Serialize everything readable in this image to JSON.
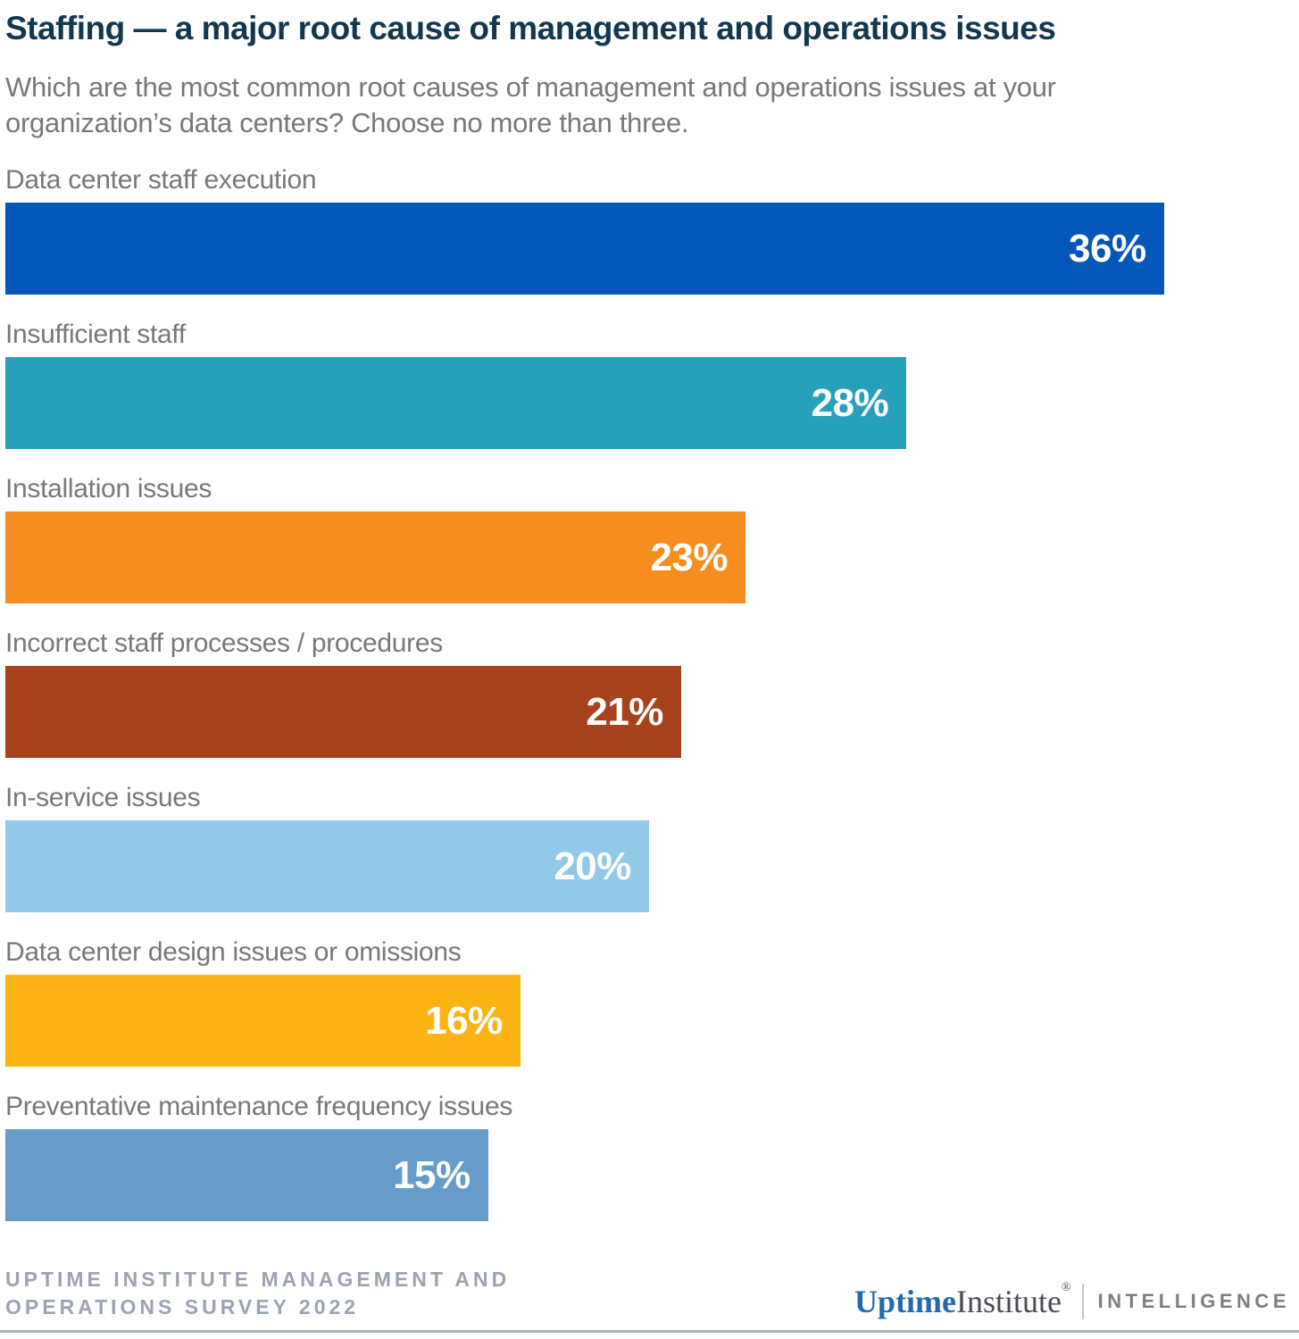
{
  "chart_data": {
    "type": "bar",
    "orientation": "horizontal",
    "title": "Staffing — a major root cause of management and operations issues",
    "subtitle": "Which are the most common root causes of management and operations issues at your organization’s data centers? Choose no more than three.",
    "unit": "%",
    "categories": [
      "Data center staff execution",
      "Insufficient staff",
      "Installation issues",
      "Incorrect staff processes / procedures",
      "In-service issues",
      "Data center design issues or omissions",
      "Preventative maintenance frequency issues"
    ],
    "values": [
      36,
      28,
      23,
      21,
      20,
      16,
      15
    ],
    "value_labels": [
      "36%",
      "28%",
      "23%",
      "21%",
      "20%",
      "16%",
      "15%"
    ],
    "bar_colors": [
      "#0456B9",
      "#27A0BB",
      "#F68D1E",
      "#A8421C",
      "#92C9E9",
      "#FCB414",
      "#679BC9"
    ],
    "xlim": [
      0,
      40.2
    ],
    "grid": false,
    "legend": false,
    "value_label_position": "inside-right",
    "category_label_position": "above-bar"
  },
  "footer": {
    "source_line1": "UPTIME INSTITUTE MANAGEMENT AND",
    "source_line2": "OPERATIONS SURVEY 2022",
    "logo": {
      "brand_bold": "Uptime",
      "brand_regular": "Institute",
      "registered": "®",
      "suffix": "INTELLIGENCE"
    }
  },
  "colors": {
    "title": "#12384F",
    "subtitle": "#77787B",
    "value_label": "#FFFFFF",
    "source_text": "#9AA3B2",
    "bottom_rule": "#A9B2C0",
    "logo_blue": "#2268B5",
    "logo_dark": "#4A4E53",
    "logo_gray": "#7C7E81",
    "background": "#FFFFFF"
  }
}
